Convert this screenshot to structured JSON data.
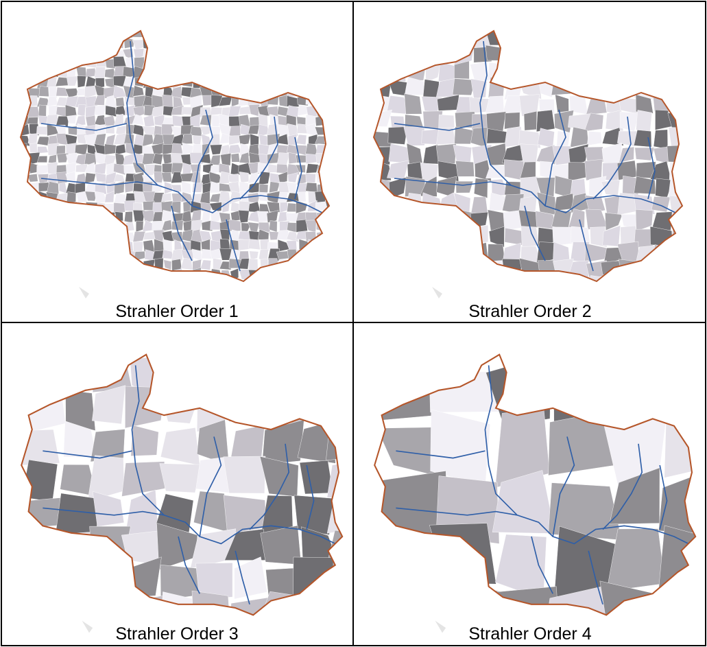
{
  "panels": [
    {
      "label": "Strahler Order 1"
    },
    {
      "label": "Strahler Order 2"
    },
    {
      "label": "Strahler Order 3"
    },
    {
      "label": "Strahler Order 4"
    }
  ]
}
